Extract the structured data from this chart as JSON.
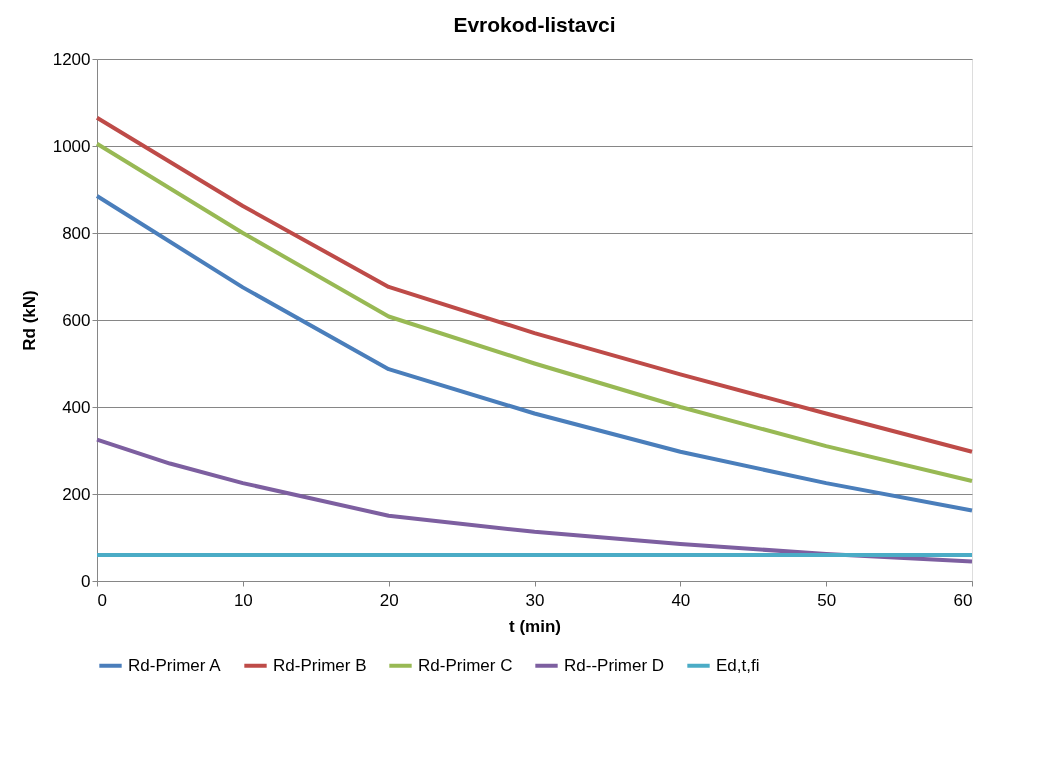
{
  "chart_data": {
    "type": "line",
    "title": "Evrokod-listavci",
    "xlabel": "t (min)",
    "ylabel": "Rd (kN)",
    "x": [
      0,
      10,
      20,
      30,
      40,
      50,
      60
    ],
    "series": [
      {
        "name": "Rd-Primer A",
        "color": "#4a7ebb",
        "values": [
          885,
          675,
          487,
          385,
          297,
          225,
          162
        ]
      },
      {
        "name": "Rd-Primer B",
        "color": "#be4b48",
        "values": [
          1065,
          862,
          676,
          570,
          475,
          385,
          297
        ]
      },
      {
        "name": "Rd-Primer C",
        "color": "#98b954",
        "values": [
          1005,
          800,
          608,
          500,
          400,
          310,
          230
        ]
      },
      {
        "name": "Rd--Primer D",
        "color": "#7d5fa0",
        "x": [
          0,
          5,
          10,
          20,
          30,
          40,
          50,
          60
        ],
        "values": [
          325,
          270,
          225,
          150,
          113,
          85,
          62,
          45
        ]
      },
      {
        "name": "Ed,t,fi",
        "color": "#4bacc6",
        "values": [
          60,
          60,
          60,
          60,
          60,
          60,
          60
        ]
      }
    ],
    "xlim": [
      0,
      60
    ],
    "xticks": [
      0,
      10,
      20,
      30,
      40,
      50,
      60
    ],
    "ylim": [
      0,
      1200
    ],
    "yticks": [
      0,
      200,
      400,
      600,
      800,
      1000,
      1200
    ],
    "grid": "y",
    "legend": "bottom",
    "marker": "none",
    "line_style": "solid"
  }
}
